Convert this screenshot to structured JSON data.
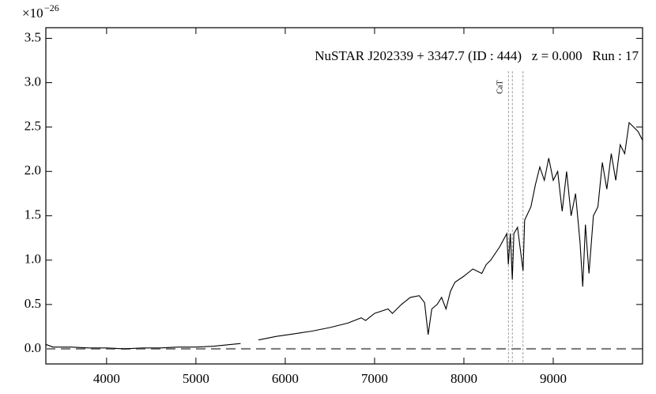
{
  "chart_data": {
    "type": "line",
    "annotation": "NuSTAR J202339 + 3347.7 (ID : 444)   z = 0.000   Run : 17",
    "y_scale_base": "×10",
    "y_scale_exponent": "−26",
    "x": [
      3320,
      3400,
      3600,
      3800,
      4000,
      4200,
      4400,
      4600,
      4800,
      5000,
      5200,
      5400,
      5500,
      5600,
      5700,
      5900,
      6100,
      6300,
      6500,
      6700,
      6850,
      6900,
      7000,
      7150,
      7200,
      7300,
      7400,
      7500,
      7560,
      7600,
      7640,
      7700,
      7750,
      7800,
      7850,
      7900,
      8000,
      8100,
      8200,
      8250,
      8300,
      8400,
      8480,
      8498,
      8520,
      8542,
      8560,
      8600,
      8662,
      8680,
      8750,
      8800,
      8850,
      8900,
      8950,
      9000,
      9050,
      9100,
      9150,
      9200,
      9250,
      9300,
      9330,
      9360,
      9400,
      9450,
      9500,
      9550,
      9600,
      9650,
      9700,
      9750,
      9800,
      9850,
      9900,
      9950,
      10000
    ],
    "series": [
      {
        "color": "#000000",
        "values": [
          0.05,
          0.02,
          0.02,
          0.01,
          0.01,
          0.0,
          0.01,
          0.01,
          0.02,
          0.02,
          0.03,
          0.05,
          0.06,
          null,
          0.1,
          0.14,
          0.17,
          0.2,
          0.24,
          0.29,
          0.35,
          0.32,
          0.4,
          0.45,
          0.4,
          0.5,
          0.58,
          0.6,
          0.52,
          0.16,
          0.45,
          0.5,
          0.58,
          0.45,
          0.65,
          0.75,
          0.82,
          0.9,
          0.85,
          0.95,
          1.0,
          1.15,
          1.3,
          0.95,
          1.3,
          0.78,
          1.3,
          1.37,
          0.88,
          1.45,
          1.6,
          1.85,
          2.05,
          1.9,
          2.15,
          1.9,
          2.0,
          1.55,
          2.0,
          1.5,
          1.75,
          1.2,
          0.7,
          1.4,
          0.85,
          1.5,
          1.6,
          2.1,
          1.8,
          2.2,
          1.9,
          2.3,
          2.2,
          2.55,
          2.5,
          2.45,
          2.35
        ]
      }
    ],
    "xlim": [
      3320,
      10000
    ],
    "ylim": [
      -0.17,
      3.62
    ],
    "xticks": [
      4000,
      5000,
      6000,
      7000,
      8000,
      9000
    ],
    "yticks": [
      {
        "value": 0,
        "label": "0.0"
      },
      {
        "value": 0.5,
        "label": "0.5"
      },
      {
        "value": 1,
        "label": "1.0"
      },
      {
        "value": 1.5,
        "label": "1.5"
      },
      {
        "value": 2,
        "label": "2.0"
      },
      {
        "value": 2.5,
        "label": "2.5"
      },
      {
        "value": 3,
        "label": "3.0"
      },
      {
        "value": 3.5,
        "label": "3.5"
      }
    ],
    "hline": 0,
    "vlines": [
      8498,
      8542,
      8662
    ],
    "vline_label": "CaT",
    "grid": false
  }
}
